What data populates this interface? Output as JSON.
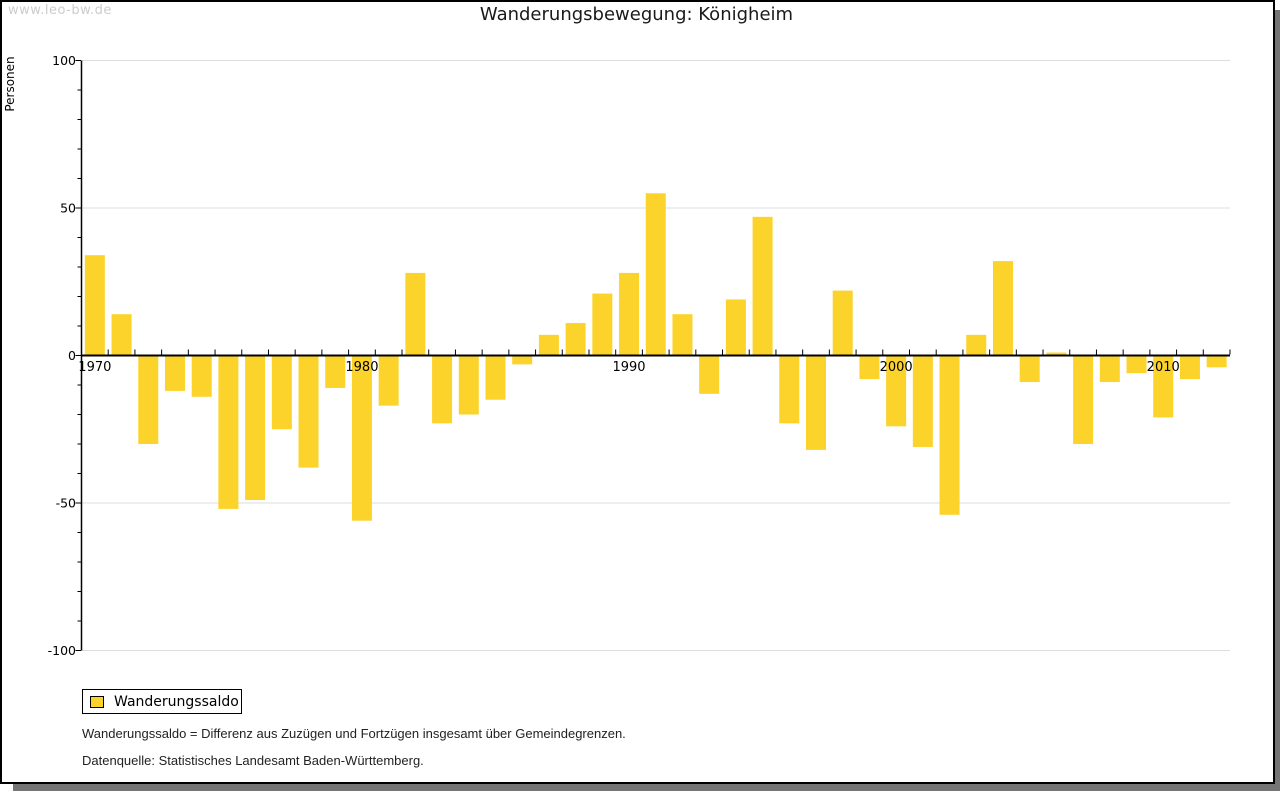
{
  "watermark": "www.leo-bw.de",
  "title": "Wanderungsbewegung: Königheim",
  "legend": {
    "label": "Wanderungssaldo"
  },
  "notes": [
    "Wanderungssaldo = Differenz aus Zuzügen und Fortzügen insgesamt über Gemeindegrenzen.",
    "Datenquelle: Statistisches Landesamt Baden-Württemberg."
  ],
  "colors": {
    "bar": "#FCD32B",
    "grid": "#DDDDDD",
    "axis": "#000000",
    "text": "#1A1A1A",
    "watermark": "#CCCCCC",
    "shadow": "#757575"
  },
  "chart_data": {
    "type": "bar",
    "title": "Wanderungsbewegung: Königheim",
    "ylabel": "Personen",
    "series_name": "Wanderungssaldo",
    "x": [
      1970,
      1971,
      1972,
      1973,
      1974,
      1975,
      1976,
      1977,
      1978,
      1979,
      1980,
      1981,
      1982,
      1983,
      1984,
      1985,
      1986,
      1987,
      1988,
      1989,
      1990,
      1991,
      1992,
      1993,
      1994,
      1995,
      1996,
      1997,
      1998,
      1999,
      2000,
      2001,
      2002,
      2003,
      2004,
      2005,
      2006,
      2007,
      2008,
      2009,
      2010,
      2011,
      2012
    ],
    "values": [
      34,
      14,
      -30,
      -12,
      -14,
      -52,
      -49,
      -25,
      -38,
      -11,
      -56,
      -17,
      28,
      -23,
      -20,
      -15,
      -3,
      7,
      11,
      21,
      28,
      55,
      14,
      -13,
      19,
      47,
      -23,
      -32,
      22,
      -8,
      -24,
      -31,
      -54,
      7,
      32,
      -9,
      1,
      -30,
      -9,
      -6,
      -21,
      -8,
      -4
    ],
    "ylim": [
      -100,
      100
    ],
    "yticks": [
      100,
      50,
      0,
      -50,
      -100
    ],
    "minor_ytick_step": 10,
    "x_tick_labels": [
      "1970",
      "1980",
      "1990",
      "2000",
      "2010"
    ],
    "grid": "horizontal",
    "legend_position": "bottom-left"
  }
}
